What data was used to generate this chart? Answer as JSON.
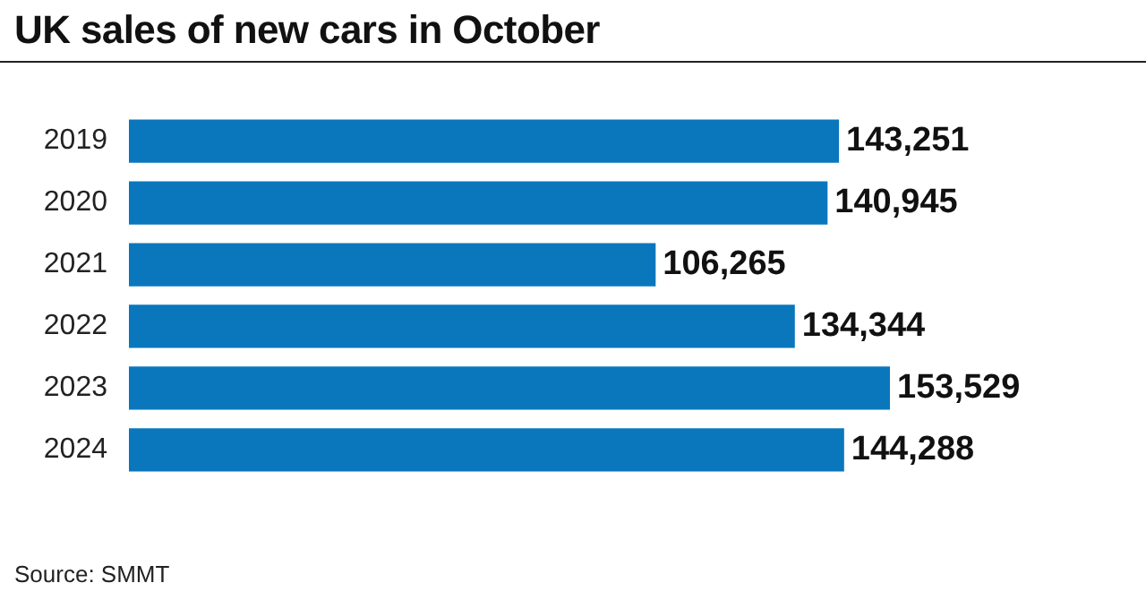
{
  "chart_data": {
    "type": "bar",
    "orientation": "horizontal",
    "title": "UK sales of new cars in October",
    "categories": [
      "2019",
      "2020",
      "2021",
      "2022",
      "2023",
      "2024"
    ],
    "values": [
      143251,
      140945,
      106265,
      134344,
      153529,
      144288
    ],
    "value_labels": [
      "143,251",
      "140,945",
      "106,265",
      "134,344",
      "153,529",
      "144,288"
    ],
    "color": "#0a77bd",
    "grid": false,
    "legend": false,
    "tick_labels": "y",
    "annotations": [
      "Source: SMMT"
    ]
  }
}
